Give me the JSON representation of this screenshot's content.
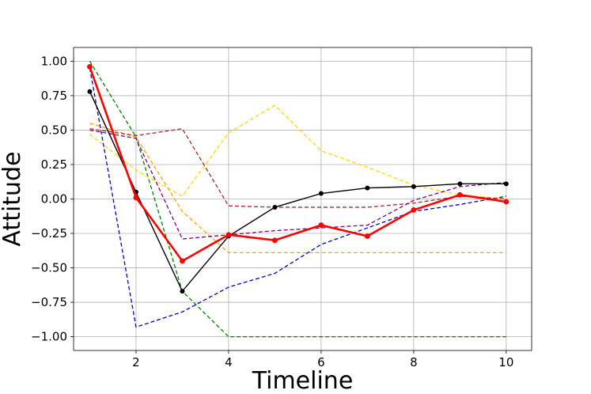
{
  "chart_data": {
    "type": "line",
    "title": "",
    "xlabel": "Timeline",
    "ylabel": "Attitude",
    "xlim": [
      0.65,
      10.55
    ],
    "ylim": [
      -1.1,
      1.1
    ],
    "xticks": [
      2,
      4,
      6,
      8,
      10
    ],
    "yticks": [
      1.0,
      0.75,
      0.5,
      0.25,
      0.0,
      -0.25,
      -0.5,
      -0.75,
      -1.0
    ],
    "ytick_labels": [
      "1.00",
      "0.75",
      "0.50",
      "0.25",
      "0.00",
      "−0.25",
      "−0.50",
      "−0.75",
      "−1.00"
    ],
    "xtick_labels": [
      "2",
      "4",
      "6",
      "8",
      "10"
    ],
    "grid": true,
    "legend": "none",
    "x": [
      1,
      2,
      3,
      4,
      5,
      6,
      7,
      8,
      9,
      10
    ],
    "series": [
      {
        "color": "#008000",
        "style": "dashed",
        "values": [
          1.0,
          0.45,
          -0.67,
          -1.0,
          -1.0,
          -1.0,
          -1.0,
          -1.0,
          -1.0,
          -1.0
        ]
      },
      {
        "color": "#0000cc",
        "style": "dashed",
        "values": [
          0.95,
          -0.93,
          -0.82,
          -0.64,
          -0.54,
          -0.33,
          -0.21,
          -0.09,
          -0.04,
          0.02
        ]
      },
      {
        "color": "#ffd700",
        "style": "dashed",
        "values": [
          0.47,
          0.21,
          0.02,
          0.48,
          0.68,
          0.35,
          0.23,
          0.1,
          0.03,
          0.0
        ]
      },
      {
        "color": "#ffa500",
        "style": "dashed",
        "values": [
          0.55,
          0.45,
          -0.09,
          -0.39,
          -0.39,
          -0.39,
          -0.39,
          -0.39,
          -0.39,
          -0.39
        ]
      },
      {
        "color": "#a52a2a",
        "style": "dashed",
        "values": [
          0.51,
          0.46,
          0.51,
          -0.05,
          -0.06,
          -0.06,
          -0.06,
          -0.03,
          0.02,
          0.0
        ]
      },
      {
        "color": "#800080",
        "style": "dashed",
        "values": [
          0.5,
          0.44,
          -0.29,
          -0.26,
          -0.23,
          -0.21,
          -0.19,
          -0.01,
          0.09,
          0.12
        ]
      },
      {
        "color": "#000000",
        "style": "solid-markers",
        "values": [
          0.78,
          0.05,
          -0.67,
          -0.27,
          -0.06,
          0.04,
          0.08,
          0.09,
          0.11,
          0.11
        ]
      },
      {
        "color": "#ff0000",
        "style": "bold-markers",
        "values": [
          0.96,
          0.01,
          -0.45,
          -0.26,
          -0.3,
          -0.19,
          -0.27,
          -0.08,
          0.03,
          -0.02
        ]
      }
    ]
  }
}
